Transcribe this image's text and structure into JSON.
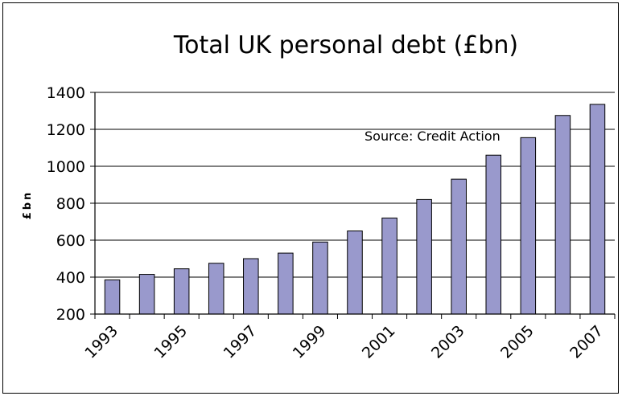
{
  "chart_data": {
    "type": "bar",
    "title": "Total UK personal debt (£bn)",
    "ylabel": "£bn",
    "xlabel": "",
    "annotation": "Source: Credit Action",
    "categories": [
      "1993",
      "1994",
      "1995",
      "1996",
      "1997",
      "1998",
      "1999",
      "2000",
      "2001",
      "2002",
      "2003",
      "2004",
      "2005",
      "2006",
      "2007"
    ],
    "x_tick_labels": [
      "1993",
      "1995",
      "1997",
      "1999",
      "2001",
      "2003",
      "2005",
      "2007"
    ],
    "values": [
      385,
      415,
      445,
      475,
      500,
      530,
      590,
      650,
      720,
      820,
      930,
      1060,
      1155,
      1275,
      1335
    ],
    "ylim": [
      200,
      1400
    ],
    "y_ticks": [
      200,
      400,
      600,
      800,
      1000,
      1200,
      1400
    ],
    "grid": true,
    "bar_color": "#9999cc"
  }
}
